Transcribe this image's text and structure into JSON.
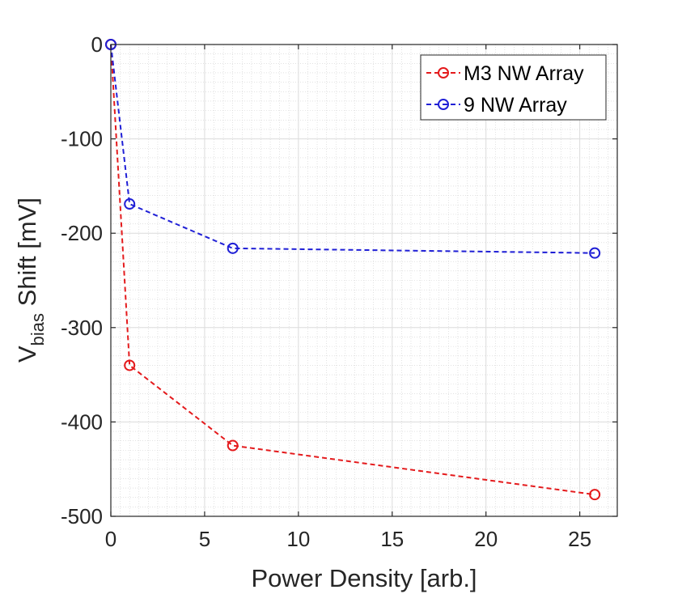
{
  "chart_data": {
    "type": "line",
    "xlabel": "Power Density [arb.]",
    "ylabel": {
      "main": "V",
      "subscript": "bias",
      "suffix": " Shift [mV]"
    },
    "xlim": [
      0,
      27
    ],
    "ylim": [
      -500,
      0
    ],
    "xticks": [
      0,
      5,
      10,
      15,
      20,
      25
    ],
    "yticks": [
      0,
      -100,
      -200,
      -300,
      -400,
      -500
    ],
    "xtick_labels": [
      "0",
      "5",
      "10",
      "15",
      "20",
      "25"
    ],
    "ytick_labels": [
      "0",
      "-100",
      "-200",
      "-300",
      "-400",
      "-500"
    ],
    "grid": true,
    "minor_grid": true,
    "legend_position": "top-right",
    "series": [
      {
        "name": "M3 NW Array",
        "color": "#e41a1c",
        "line_style": "dashed",
        "marker": "circle-open",
        "x": [
          0,
          1,
          6.5,
          25.8
        ],
        "y": [
          0,
          -340,
          -425,
          -477
        ]
      },
      {
        "name": "9 NW Array",
        "color": "#1f1fd6",
        "line_style": "dashed",
        "marker": "circle-open",
        "x": [
          0,
          1,
          6.5,
          25.8
        ],
        "y": [
          0,
          -169,
          -216,
          -221
        ]
      }
    ]
  }
}
